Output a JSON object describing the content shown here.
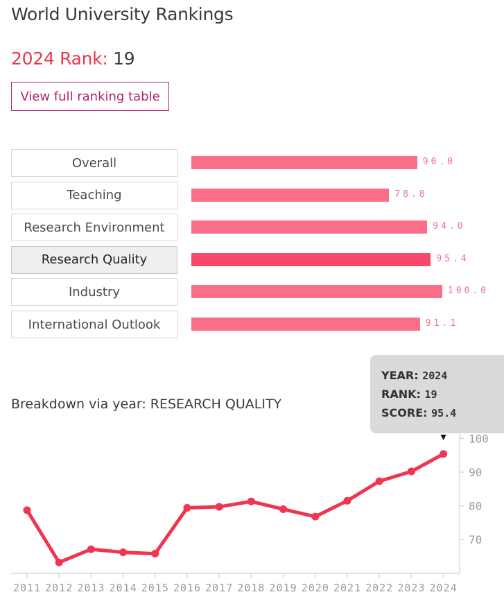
{
  "header": {
    "title": "World University Rankings",
    "rank_label": "2024 Rank:",
    "rank_value": "19",
    "button_label": "View full ranking table"
  },
  "pillars": [
    {
      "label": "Overall",
      "value": 90.0,
      "value_text": "90.0",
      "active": false
    },
    {
      "label": "Teaching",
      "value": 78.8,
      "value_text": "78.8",
      "active": false
    },
    {
      "label": "Research Environment",
      "value": 94.0,
      "value_text": "94.0",
      "active": false
    },
    {
      "label": "Research Quality",
      "value": 95.4,
      "value_text": "95.4",
      "active": true
    },
    {
      "label": "Industry",
      "value": 100.0,
      "value_text": "100.0",
      "active": false
    },
    {
      "label": "International Outlook",
      "value": 91.1,
      "value_text": "91.1",
      "active": false
    }
  ],
  "breakdown": {
    "heading": "Breakdown via year: RESEARCH QUALITY"
  },
  "tooltip": {
    "year_label": "YEAR:",
    "year": "2024",
    "rank_label": "RANK:",
    "rank": "19",
    "score_label": "SCORE:",
    "score": "95.4"
  },
  "colors": {
    "accent": "#e8394e",
    "bar": "#fb6e87",
    "bar_active": "#f9496a",
    "line": "#ef3550",
    "button": "#b0246e"
  },
  "chart_data": {
    "type": "line",
    "x": [
      "2011",
      "2012",
      "2013",
      "2014",
      "2015",
      "2016",
      "2017",
      "2018",
      "2019",
      "2020",
      "2021",
      "2022",
      "2023",
      "2024"
    ],
    "series": [
      {
        "values": [
          78.7,
          63.2,
          67.1,
          66.2,
          65.8,
          79.4,
          79.7,
          81.3,
          79.0,
          76.8,
          81.5,
          87.3,
          90.2,
          95.4
        ]
      }
    ],
    "yticks": [
      70,
      80,
      90,
      100
    ],
    "ylim": [
      60,
      100
    ],
    "y_axis_position": "right",
    "grid": false,
    "highlight": {
      "x": "2024",
      "y": 95.4
    }
  }
}
